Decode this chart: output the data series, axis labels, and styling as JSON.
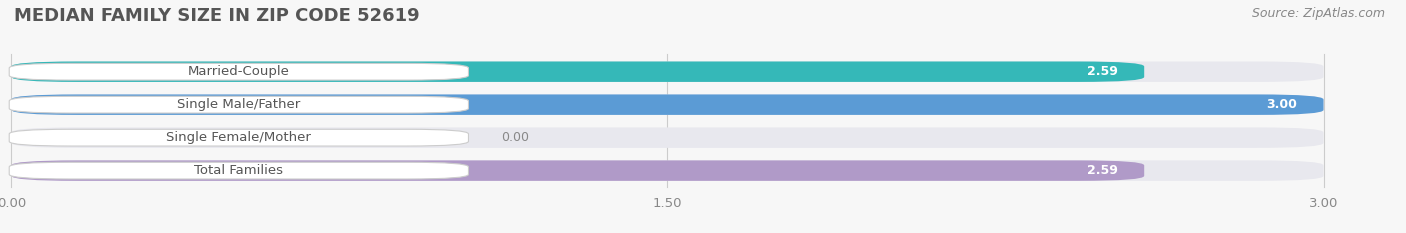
{
  "title": "MEDIAN FAMILY SIZE IN ZIP CODE 52619",
  "source": "Source: ZipAtlas.com",
  "categories": [
    "Married-Couple",
    "Single Male/Father",
    "Single Female/Mother",
    "Total Families"
  ],
  "values": [
    2.59,
    3.0,
    0.0,
    2.59
  ],
  "bar_colors": [
    "#35b8b8",
    "#5b9bd5",
    "#f4a0b0",
    "#b09ac8"
  ],
  "xlim": [
    0,
    3.0
  ],
  "xticks": [
    0.0,
    1.5,
    3.0
  ],
  "background_color": "#f7f7f7",
  "bg_bar_color": "#e8e8ee",
  "title_fontsize": 13,
  "label_fontsize": 9.5,
  "value_fontsize": 9,
  "source_fontsize": 9
}
